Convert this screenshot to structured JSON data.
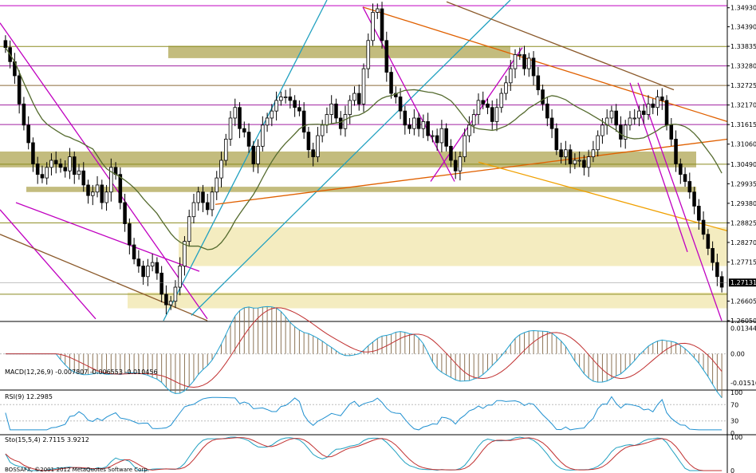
{
  "chart_data": [
    {
      "type": "candlestick",
      "panel": "price",
      "y_ticks": [
        "1.34930",
        "1.34390",
        "1.33835",
        "1.33280",
        "1.32725",
        "1.32170",
        "1.31615",
        "1.31060",
        "1.30490",
        "1.29935",
        "1.29380",
        "1.28825",
        "1.28270",
        "1.27715",
        "1.27131",
        "1.26605",
        "1.26050"
      ],
      "y_tick_values": [
        1.3493,
        1.3439,
        1.33835,
        1.3328,
        1.32725,
        1.3217,
        1.31615,
        1.3106,
        1.3049,
        1.29935,
        1.2938,
        1.28825,
        1.2827,
        1.27715,
        1.27131,
        1.26605,
        1.2605
      ],
      "ylim": [
        1.2605,
        1.3515
      ],
      "current_price": "1.27131",
      "current_price_value": 1.27131,
      "close_series": [
        1.338,
        1.334,
        1.33,
        1.322,
        1.316,
        1.311,
        1.305,
        1.302,
        1.301,
        1.304,
        1.306,
        1.305,
        1.304,
        1.303,
        1.307,
        1.302,
        1.303,
        1.299,
        1.296,
        1.297,
        1.299,
        1.294,
        1.297,
        1.304,
        1.302,
        1.294,
        1.288,
        1.282,
        1.278,
        1.276,
        1.273,
        1.276,
        1.277,
        1.274,
        1.268,
        1.265,
        1.266,
        1.27,
        1.276,
        1.283,
        1.29,
        1.294,
        1.297,
        1.294,
        1.292,
        1.297,
        1.301,
        1.306,
        1.312,
        1.318,
        1.321,
        1.315,
        1.314,
        1.31,
        1.305,
        1.31,
        1.316,
        1.318,
        1.32,
        1.323,
        1.324,
        1.324,
        1.323,
        1.321,
        1.32,
        1.314,
        1.309,
        1.307,
        1.313,
        1.316,
        1.319,
        1.322,
        1.318,
        1.315,
        1.319,
        1.323,
        1.325,
        1.322,
        1.332,
        1.34,
        1.348,
        1.349,
        1.34,
        1.331,
        1.325,
        1.324,
        1.32,
        1.316,
        1.315,
        1.318,
        1.315,
        1.317,
        1.313,
        1.313,
        1.311,
        1.315,
        1.31,
        1.306,
        1.303,
        1.307,
        1.313,
        1.316,
        1.319,
        1.323,
        1.322,
        1.321,
        1.317,
        1.321,
        1.325,
        1.328,
        1.332,
        1.336,
        1.336,
        1.332,
        1.335,
        1.33,
        1.326,
        1.322,
        1.318,
        1.315,
        1.309,
        1.307,
        1.309,
        1.305,
        1.306,
        1.306,
        1.304,
        1.307,
        1.309,
        1.313,
        1.316,
        1.318,
        1.32,
        1.316,
        1.312,
        1.316,
        1.318,
        1.318,
        1.32,
        1.319,
        1.322,
        1.321,
        1.324,
        1.323,
        1.316,
        1.312,
        1.305,
        1.302,
        1.3,
        1.297,
        1.293,
        1.289,
        1.285,
        1.281,
        1.277,
        1.273,
        1.27
      ],
      "horizontal_levels": [
        1.3328,
        1.32725,
        1.3217,
        1.31615,
        1.3049,
        1.28825,
        1.268
      ]
    },
    {
      "type": "line",
      "panel": "MACD",
      "label": "MACD(12,26,9) -0.007807 -0.006553 -0.010456",
      "y_ticks": [
        "0.01344",
        "0.00",
        "-0.01516"
      ],
      "y_tick_values": [
        0.01344,
        0,
        -0.01516
      ],
      "ylim": [
        -0.0185,
        0.0165
      ],
      "zero_line": 0
    },
    {
      "type": "line",
      "panel": "RSI",
      "label": "RSI(9) 12.2985",
      "y_ticks": [
        "100",
        "70",
        "30",
        "0"
      ],
      "y_tick_values": [
        100,
        70,
        30,
        0
      ],
      "ylim": [
        0,
        100
      ]
    },
    {
      "type": "line",
      "panel": "Stochastic",
      "label": "Sto(15,5,4) 2.7115 3.9212",
      "y_ticks": [
        "100",
        "0"
      ],
      "y_tick_values": [
        100,
        0
      ],
      "ylim": [
        0,
        100
      ]
    }
  ],
  "footer": "BOSSAFX, ©2001-2012 MetaQuotes Software Corp."
}
